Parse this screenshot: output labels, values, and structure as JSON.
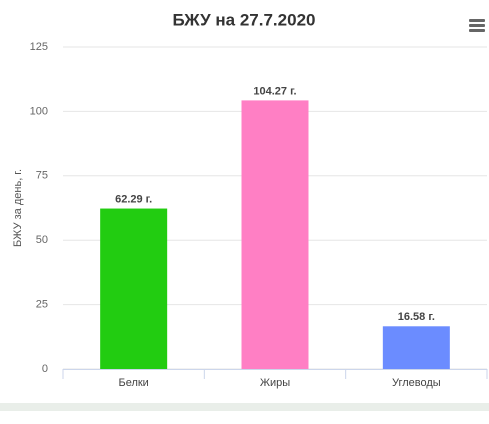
{
  "chart_data": {
    "type": "bar",
    "title": "БЖУ на 27.7.2020",
    "y_label": "БЖУ за день, г.",
    "categories": [
      "Белки",
      "Жиры",
      "Углеводы"
    ],
    "values": [
      62.29,
      104.27,
      16.58
    ],
    "value_labels": [
      "62.29 г.",
      "104.27 г.",
      "16.58 г."
    ],
    "colors": [
      "#22cc11",
      "#ff7fc4",
      "#6b8cff"
    ],
    "ylim": [
      0,
      125
    ],
    "yticks": [
      0,
      25,
      50,
      75,
      100,
      125
    ],
    "grid": true
  }
}
